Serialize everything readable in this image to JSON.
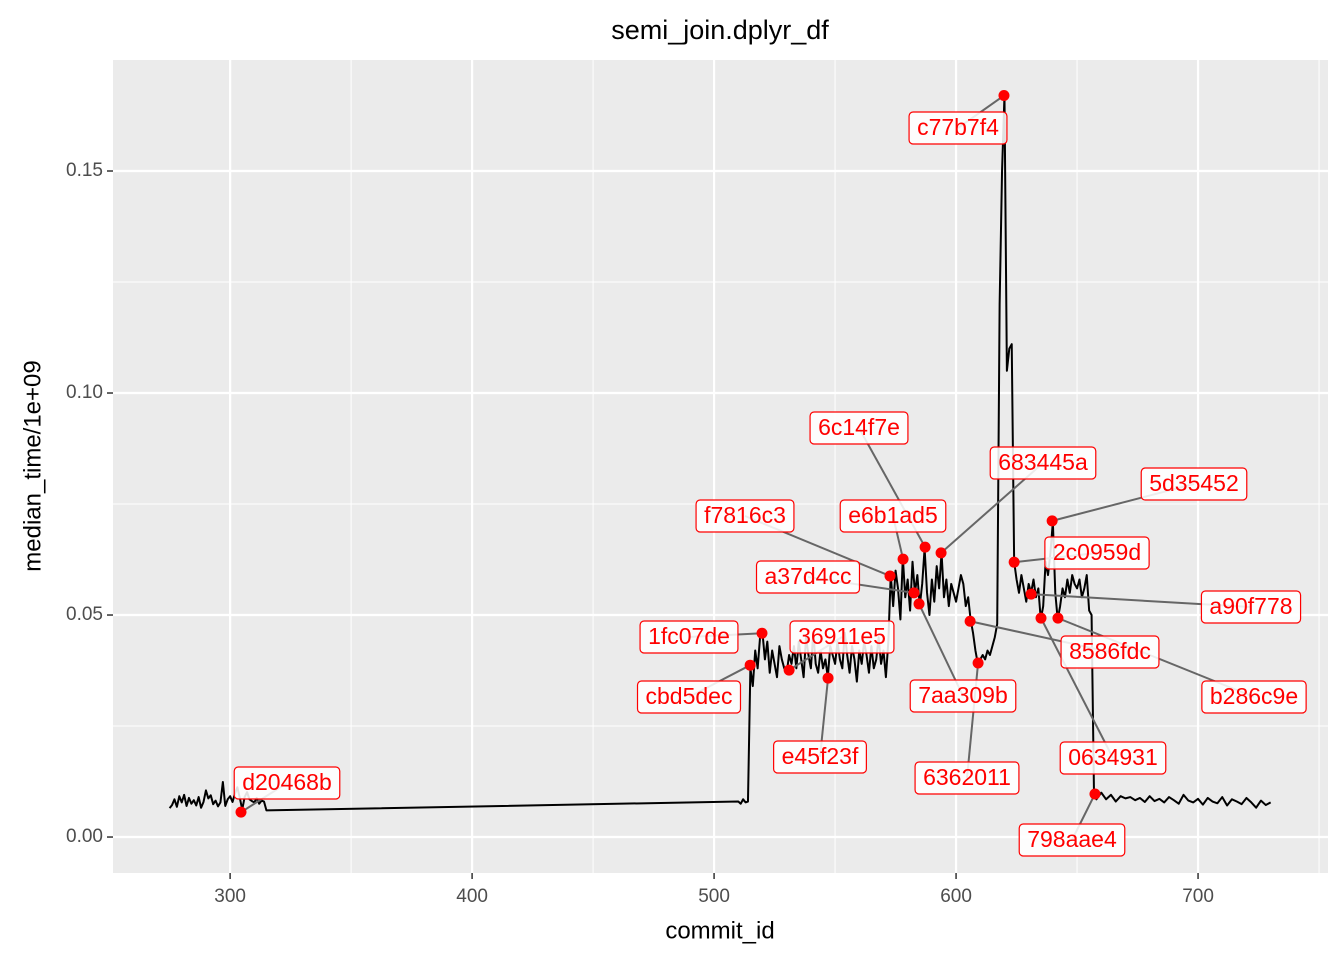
{
  "chart_data": {
    "type": "line",
    "title": "semi_join.dplyr_df",
    "x_label": "commit_id",
    "y_label": "median_time/1e+09",
    "xlim": [
      251.6,
      753.7
    ],
    "ylim": [
      -0.0081,
      0.175
    ],
    "xticks": [
      300,
      400,
      500,
      600,
      700
    ],
    "yticks": [
      {
        "value": 0,
        "label": "0.00"
      },
      {
        "value": 0.05,
        "label": "0.05"
      },
      {
        "value": 0.1,
        "label": "0.10"
      },
      {
        "value": 0.15,
        "label": "0.15"
      }
    ],
    "minor_xticks": [
      350,
      450,
      550,
      650,
      750
    ],
    "minor_yticks": [
      0.025,
      0.075,
      0.125
    ],
    "grid": true,
    "line": {
      "color": "#000000",
      "x": [
        275,
        276,
        277,
        278,
        279,
        280,
        281,
        282,
        283,
        284,
        285,
        286,
        287,
        288,
        289,
        290,
        291,
        292,
        293,
        294,
        295,
        296,
        297,
        298,
        299,
        300,
        301,
        302,
        303,
        304,
        305,
        306,
        307,
        308,
        309,
        310,
        311,
        312,
        313,
        314,
        315,
        510,
        511,
        512,
        513,
        514,
        515,
        516,
        517,
        518,
        519,
        520,
        521,
        522,
        523,
        524,
        525,
        526,
        527,
        528,
        529,
        530,
        531,
        532,
        533,
        534,
        535,
        536,
        537,
        538,
        539,
        540,
        541,
        542,
        543,
        544,
        545,
        546,
        547,
        548,
        549,
        550,
        551,
        552,
        553,
        554,
        555,
        556,
        557,
        558,
        559,
        560,
        561,
        562,
        563,
        564,
        565,
        566,
        567,
        568,
        569,
        570,
        571,
        572,
        573,
        574,
        575,
        576,
        577,
        578,
        579,
        580,
        581,
        582,
        583,
        584,
        585,
        586,
        587,
        588,
        589,
        590,
        591,
        592,
        593,
        594,
        595,
        596,
        597,
        598,
        599,
        600,
        601,
        602,
        603,
        604,
        605,
        606,
        607,
        608,
        609,
        610,
        611,
        612,
        613,
        614,
        615,
        616,
        617,
        618,
        619,
        620,
        621,
        622,
        623,
        624,
        625,
        626,
        627,
        628,
        629,
        630,
        631,
        632,
        633,
        634,
        635,
        636,
        637,
        638,
        639,
        640,
        641,
        642,
        643,
        644,
        645,
        646,
        647,
        648,
        649,
        650,
        651,
        652,
        653,
        654,
        655,
        656,
        657,
        658,
        660,
        662,
        664,
        666,
        668,
        670,
        672,
        674,
        676,
        678,
        680,
        682,
        684,
        686,
        688,
        690,
        692,
        694,
        696,
        698,
        700,
        702,
        704,
        706,
        708,
        710,
        712,
        714,
        716,
        718,
        720,
        722,
        724,
        726,
        728,
        730
      ],
      "values": [
        0.0065,
        0.0072,
        0.0085,
        0.0068,
        0.0092,
        0.0078,
        0.0095,
        0.007,
        0.0088,
        0.0075,
        0.0083,
        0.0071,
        0.009,
        0.0066,
        0.0079,
        0.0105,
        0.0087,
        0.0094,
        0.0074,
        0.0082,
        0.0069,
        0.0078,
        0.0124,
        0.007,
        0.0085,
        0.0092,
        0.0079,
        0.0098,
        0.0112,
        0.0088,
        0.0062,
        0.009,
        0.0101,
        0.0085,
        0.0081,
        0.0078,
        0.0088,
        0.0075,
        0.0082,
        0.008,
        0.006,
        0.008,
        0.0075,
        0.0085,
        0.0078,
        0.008,
        0.038,
        0.034,
        0.042,
        0.038,
        0.045,
        0.046,
        0.04,
        0.044,
        0.037,
        0.042,
        0.039,
        0.036,
        0.043,
        0.04,
        0.038,
        0.037,
        0.041,
        0.039,
        0.043,
        0.038,
        0.044,
        0.04,
        0.036,
        0.045,
        0.041,
        0.038,
        0.046,
        0.039,
        0.037,
        0.042,
        0.038,
        0.04,
        0.036,
        0.043,
        0.041,
        0.039,
        0.044,
        0.04,
        0.038,
        0.046,
        0.041,
        0.037,
        0.043,
        0.04,
        0.035,
        0.042,
        0.039,
        0.044,
        0.041,
        0.037,
        0.043,
        0.038,
        0.04,
        0.045,
        0.039,
        0.042,
        0.036,
        0.044,
        0.059,
        0.052,
        0.06,
        0.056,
        0.049,
        0.063,
        0.054,
        0.058,
        0.051,
        0.062,
        0.055,
        0.059,
        0.052,
        0.057,
        0.065,
        0.055,
        0.05,
        0.058,
        0.053,
        0.061,
        0.056,
        0.064,
        0.054,
        0.058,
        0.052,
        0.057,
        0.055,
        0.053,
        0.056,
        0.059,
        0.057,
        0.052,
        0.054,
        0.049,
        0.046,
        0.042,
        0.039,
        0.04,
        0.041,
        0.04,
        0.042,
        0.041,
        0.043,
        0.045,
        0.048,
        0.12,
        0.15,
        0.167,
        0.105,
        0.11,
        0.111,
        0.062,
        0.058,
        0.055,
        0.059,
        0.056,
        0.053,
        0.057,
        0.055,
        0.058,
        0.054,
        0.056,
        0.049,
        0.052,
        0.062,
        0.059,
        0.064,
        0.071,
        0.055,
        0.049,
        0.052,
        0.056,
        0.054,
        0.058,
        0.055,
        0.059,
        0.057,
        0.056,
        0.058,
        0.054,
        0.056,
        0.059,
        0.051,
        0.05,
        0.0097,
        0.0085,
        0.01,
        0.0085,
        0.0095,
        0.008,
        0.0092,
        0.0087,
        0.009,
        0.0083,
        0.0088,
        0.0079,
        0.0092,
        0.0081,
        0.0086,
        0.0078,
        0.009,
        0.0083,
        0.0075,
        0.0095,
        0.0082,
        0.0078,
        0.0086,
        0.0073,
        0.0088,
        0.008,
        0.0076,
        0.009,
        0.0071,
        0.0085,
        0.008,
        0.0074,
        0.0088,
        0.0078,
        0.0066,
        0.0082,
        0.0072,
        0.0078
      ]
    },
    "highlights": {
      "color": "#ff0000",
      "labels": [
        "d20468b",
        "c77b7f4",
        "6c14f7e",
        "683445a",
        "5d35452",
        "e6b1ad5",
        "f7816c3",
        "2c0959d",
        "a37d4cc",
        "a90f778",
        "7aa309b",
        "8586fdc",
        "1fc07de",
        "36911e5",
        "cbd5dec",
        "e45f23f",
        "6362011",
        "0634931",
        "b286c9e",
        "798aae4"
      ],
      "x": [
        304.5,
        619.8,
        587.2,
        593.8,
        639.7,
        578.1,
        572.7,
        624.0,
        582.6,
        631.0,
        584.7,
        605.8,
        519.8,
        531.0,
        514.9,
        547.1,
        609.1,
        635.1,
        642.1,
        657.4
      ],
      "values": [
        0.0056,
        0.167,
        0.0653,
        0.064,
        0.0712,
        0.0626,
        0.0588,
        0.0619,
        0.055,
        0.0547,
        0.0525,
        0.0486,
        0.0459,
        0.0376,
        0.0387,
        0.0358,
        0.0392,
        0.0493,
        0.0493,
        0.0097
      ]
    }
  }
}
